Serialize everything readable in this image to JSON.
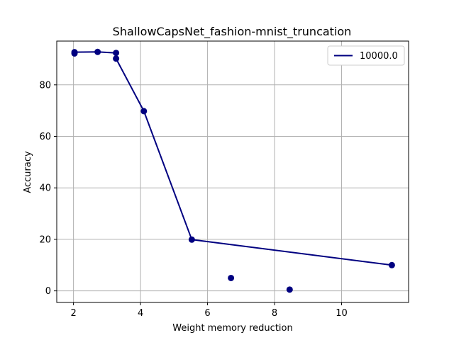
{
  "chart_data": {
    "type": "scatter",
    "title": "ShallowCapsNet_fashion-mnist_truncation",
    "xlabel": "Weight memory reduction",
    "ylabel": "Accuracy",
    "xlim": [
      1.5,
      12.0
    ],
    "ylim": [
      -4.5,
      97.0
    ],
    "xticks": [
      2,
      4,
      6,
      8,
      10
    ],
    "yticks": [
      0,
      20,
      40,
      60,
      80
    ],
    "grid": true,
    "legend_position": "top-right",
    "colors": {
      "series": "#000080",
      "grid": "#b0b0b0",
      "axes": "#000000"
    },
    "series": [
      {
        "name": "10000.0",
        "kind": "line",
        "x": [
          2.03,
          2.72,
          3.27,
          3.27,
          4.1,
          5.53,
          11.5
        ],
        "y": [
          92.7,
          92.8,
          92.4,
          90.2,
          69.8,
          19.9,
          10.0
        ]
      },
      {
        "kind": "scatter",
        "x": [
          2.03,
          2.03,
          2.72,
          3.27,
          3.27,
          4.1,
          5.53,
          6.7,
          8.45,
          11.5
        ],
        "y": [
          92.7,
          92.2,
          92.8,
          92.4,
          90.2,
          69.8,
          19.9,
          5.0,
          0.5,
          10.0
        ]
      }
    ]
  }
}
